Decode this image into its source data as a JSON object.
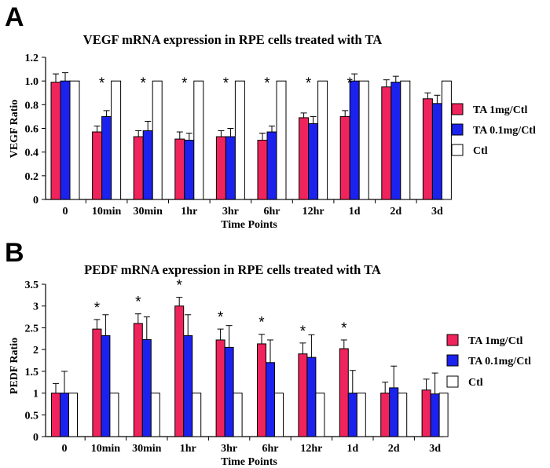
{
  "panel_letters": [
    "A",
    "B"
  ],
  "legend": [
    {
      "label": "TA 1mg/Ctl",
      "color": "#f0245c"
    },
    {
      "label": "TA 0.1mg/Ctl",
      "color": "#1c22ee"
    },
    {
      "label": "Ctl",
      "color": "#ffffff"
    }
  ],
  "chart_data": [
    {
      "type": "bar",
      "title": "VEGF mRNA expression in RPE cells treated with TA",
      "xlabel": "Time Points",
      "ylabel": "VEGF Ratio",
      "ylim": [
        0,
        1.2
      ],
      "yticks": [
        "0",
        "0.2",
        "0.4",
        "0.6",
        "0.8",
        "1.0",
        "1.2"
      ],
      "categories": [
        "0",
        "10min",
        "30min",
        "1hr",
        "3hr",
        "6hr",
        "12hr",
        "1d",
        "2d",
        "3d"
      ],
      "series": [
        {
          "name": "TA 1mg/Ctl",
          "values": [
            0.99,
            0.57,
            0.53,
            0.51,
            0.53,
            0.5,
            0.69,
            0.7,
            0.95,
            0.85
          ],
          "errors": [
            0.07,
            0.05,
            0.05,
            0.06,
            0.05,
            0.06,
            0.04,
            0.05,
            0.06,
            0.05
          ]
        },
        {
          "name": "TA 0.1mg/Ctl",
          "values": [
            1.0,
            0.7,
            0.58,
            0.5,
            0.53,
            0.57,
            0.64,
            1.0,
            0.99,
            0.81
          ],
          "errors": [
            0.07,
            0.05,
            0.08,
            0.06,
            0.07,
            0.05,
            0.06,
            0.06,
            0.05,
            0.07
          ]
        },
        {
          "name": "Ctl",
          "values": [
            1,
            1,
            1,
            1,
            1,
            1,
            1,
            1,
            1,
            1
          ],
          "errors": [
            0,
            0,
            0,
            0,
            0,
            0,
            0,
            0,
            0,
            0
          ]
        }
      ],
      "significance": [
        "",
        "*",
        "*",
        "*",
        "*",
        "*",
        "*",
        "*",
        "",
        ""
      ],
      "legend_position": "right"
    },
    {
      "type": "bar",
      "title": "PEDF mRNA expression in RPE cells treated with TA",
      "xlabel": "Time Points",
      "ylabel": "PEDF Ratio",
      "ylim": [
        0,
        3.5
      ],
      "yticks": [
        "0",
        "0.5",
        "1",
        "1.5",
        "2",
        "2.5",
        "3",
        "3.5"
      ],
      "categories": [
        "0",
        "10min",
        "30min",
        "1hr",
        "3hr",
        "6hr",
        "12hr",
        "1d",
        "2d",
        "3d"
      ],
      "series": [
        {
          "name": "TA 1mg/Ctl",
          "values": [
            1.0,
            2.47,
            2.6,
            3.0,
            2.22,
            2.13,
            1.9,
            2.02,
            1.0,
            1.07
          ],
          "errors": [
            0.22,
            0.22,
            0.22,
            0.2,
            0.25,
            0.22,
            0.25,
            0.2,
            0.25,
            0.25
          ]
        },
        {
          "name": "TA 0.1mg/Ctl",
          "values": [
            1.0,
            2.32,
            2.23,
            2.32,
            2.05,
            1.7,
            1.82,
            1.0,
            1.12,
            0.98
          ],
          "errors": [
            0.5,
            0.48,
            0.52,
            0.48,
            0.5,
            0.52,
            0.52,
            0.52,
            0.5,
            0.48
          ]
        },
        {
          "name": "Ctl",
          "values": [
            1,
            1,
            1,
            1,
            1,
            1,
            1,
            1,
            1,
            1
          ],
          "errors": [
            0,
            0,
            0,
            0,
            0,
            0,
            0,
            0,
            0,
            0
          ]
        }
      ],
      "significance": [
        "",
        "*",
        "*",
        "*",
        "*",
        "*",
        "*",
        "*",
        "",
        ""
      ],
      "legend_position": "right"
    }
  ]
}
